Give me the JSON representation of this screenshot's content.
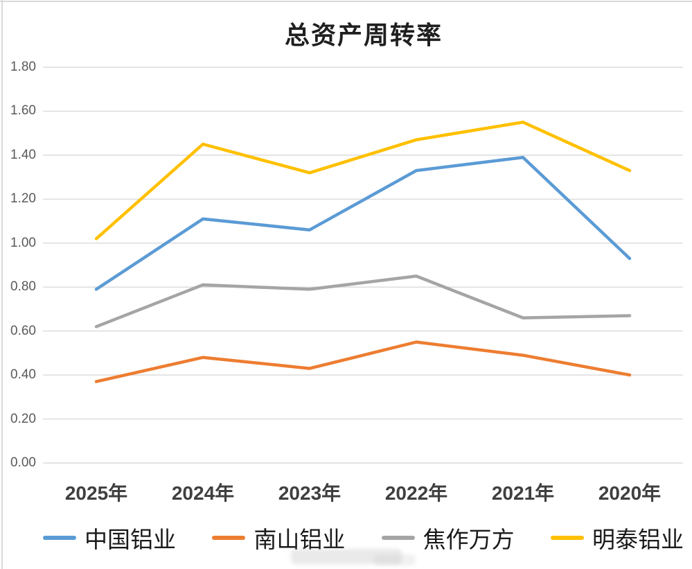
{
  "window": {
    "border_color": "#d8d8d8",
    "background": "#ffffff"
  },
  "chart_data": {
    "type": "line",
    "title": "总资产周转率",
    "categories": [
      "2025年",
      "2024年",
      "2023年",
      "2022年",
      "2021年",
      "2020年"
    ],
    "series": [
      {
        "name": "中国铝业",
        "color": "#5B9BD5",
        "values": [
          0.79,
          1.11,
          1.06,
          1.33,
          1.39,
          0.93
        ]
      },
      {
        "name": "南山铝业",
        "color": "#ED7D31",
        "values": [
          0.37,
          0.48,
          0.43,
          0.55,
          0.49,
          0.4
        ]
      },
      {
        "name": "焦作万方",
        "color": "#A5A5A5",
        "values": [
          0.62,
          0.81,
          0.79,
          0.85,
          0.66,
          0.67
        ]
      },
      {
        "name": "明泰铝业",
        "color": "#FFC000",
        "values": [
          1.02,
          1.45,
          1.32,
          1.47,
          1.55,
          1.33
        ]
      }
    ],
    "y_axis": {
      "min": 0.0,
      "max": 1.8,
      "step": 0.2,
      "tick_labels": [
        "0.00",
        "0.20",
        "0.40",
        "0.60",
        "0.80",
        "1.00",
        "1.20",
        "1.40",
        "1.60",
        "1.80"
      ]
    },
    "grid": true,
    "gridline_color": "#DCDCDC",
    "legend_position": "bottom",
    "text_colors": {
      "title": "#1f1f1f",
      "y_ticks": "#595959",
      "x_ticks": "#3f3f3f",
      "legend": "#1a1a1a"
    }
  }
}
